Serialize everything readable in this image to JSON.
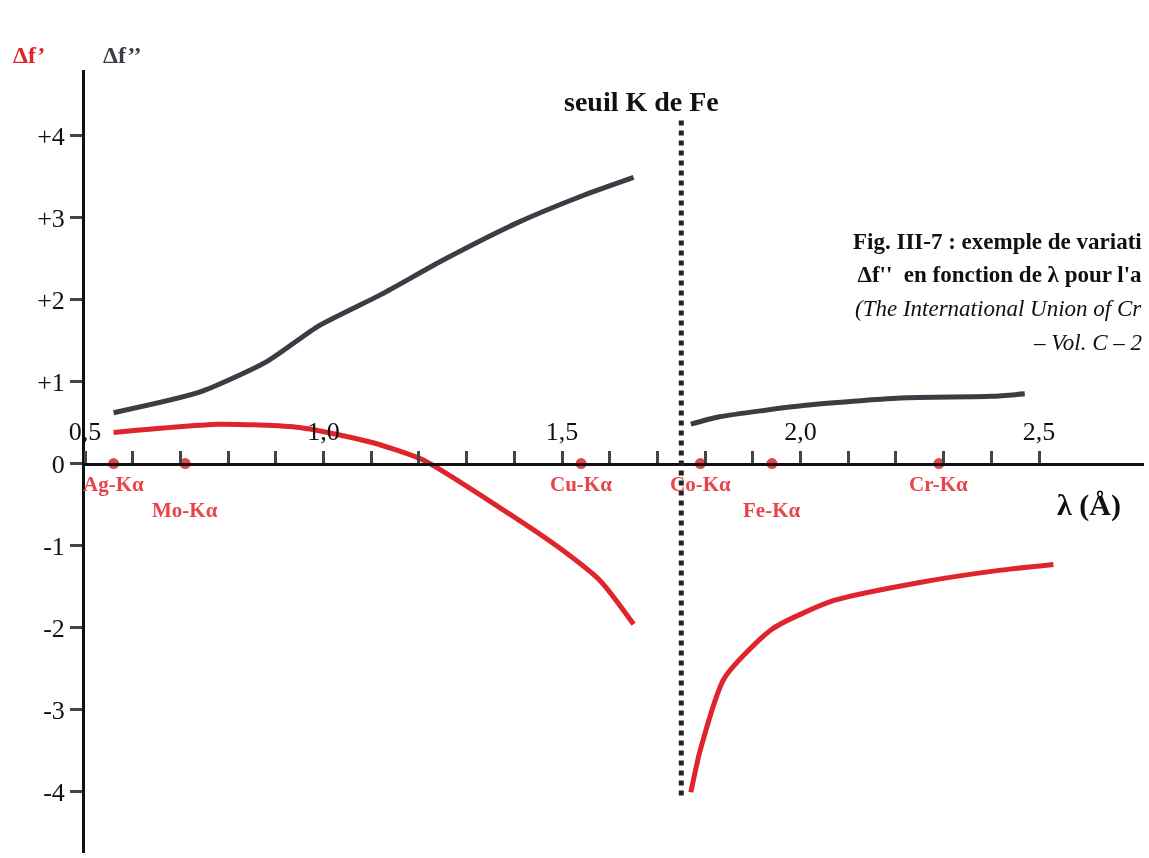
{
  "chart_data": {
    "type": "line",
    "xlabel": "λ (Å)",
    "xlim": [
      0.5,
      2.72
    ],
    "xticks": [
      {
        "value": 0.5,
        "label": "0,5"
      },
      {
        "value": 0.6,
        "label": null
      },
      {
        "value": 0.7,
        "label": null
      },
      {
        "value": 0.8,
        "label": null
      },
      {
        "value": 0.9,
        "label": null
      },
      {
        "value": 1.0,
        "label": "1,0"
      },
      {
        "value": 1.1,
        "label": null
      },
      {
        "value": 1.2,
        "label": null
      },
      {
        "value": 1.3,
        "label": null
      },
      {
        "value": 1.4,
        "label": null
      },
      {
        "value": 1.5,
        "label": "1,5"
      },
      {
        "value": 1.6,
        "label": null
      },
      {
        "value": 1.7,
        "label": null
      },
      {
        "value": 1.8,
        "label": null
      },
      {
        "value": 1.9,
        "label": null
      },
      {
        "value": 2.0,
        "label": "2,0"
      },
      {
        "value": 2.1,
        "label": null
      },
      {
        "value": 2.2,
        "label": null
      },
      {
        "value": 2.3,
        "label": null
      },
      {
        "value": 2.4,
        "label": null
      },
      {
        "value": 2.5,
        "label": "2,5"
      }
    ],
    "ylim": [
      -4.75,
      4.8
    ],
    "yticks": [
      {
        "value": 4,
        "label": "+4"
      },
      {
        "value": 3,
        "label": "+3"
      },
      {
        "value": 2,
        "label": "+2"
      },
      {
        "value": 1,
        "label": "+1"
      },
      0,
      -1,
      -2,
      -3,
      -4
    ],
    "legend": false,
    "line_style": "solid",
    "series": [
      {
        "name": "Δf’",
        "color": "#e0242b",
        "x": [
          0.56,
          0.78,
          0.95,
          1.1,
          1.21,
          1.37,
          1.49,
          1.58,
          1.65,
          null,
          1.77,
          1.79,
          1.84,
          1.94,
          2.07,
          2.25,
          2.42,
          2.53
        ],
        "values": [
          0.38,
          0.48,
          0.44,
          0.26,
          0.04,
          -0.54,
          -1.01,
          -1.43,
          -1.96,
          null,
          -4.01,
          -3.49,
          -2.62,
          -2.02,
          -1.67,
          -1.45,
          -1.3,
          -1.23
        ]
      },
      {
        "name": "Δf’’",
        "color": "#3a3d44",
        "x": [
          0.56,
          0.74,
          0.88,
          0.99,
          1.12,
          1.25,
          1.4,
          1.54,
          1.65,
          null,
          1.77,
          1.83,
          2.01,
          2.21,
          2.4,
          2.47
        ],
        "values": [
          0.62,
          0.87,
          1.24,
          1.68,
          2.06,
          2.48,
          2.92,
          3.26,
          3.49,
          null,
          0.48,
          0.57,
          0.71,
          0.8,
          0.82,
          0.85
        ]
      },
      {
        "type": "scatter",
        "marker": "circle",
        "color": "#e8444a",
        "x": [
          0.56,
          0.71,
          1.54,
          1.79,
          1.94,
          2.29
        ],
        "values": [
          0,
          0,
          0,
          0,
          0,
          0
        ],
        "value_labels": [
          "Ag-Kα",
          "Mo-Kα",
          "Cu-Kα",
          "Co-Kα",
          "Fe-Kα",
          "Cr-Kα"
        ]
      }
    ],
    "ref_lines": [
      {
        "axis": "x",
        "value": 1.75,
        "label": "seuil K de Fe",
        "color": "#222222",
        "line_style": "dotted"
      }
    ],
    "annotations": [
      "Fig. III-7 : exemple de variati",
      " Δf''  en fonction de λ pour l'a",
      "(The International Union of Cr",
      "– Vol. C – 2"
    ]
  }
}
